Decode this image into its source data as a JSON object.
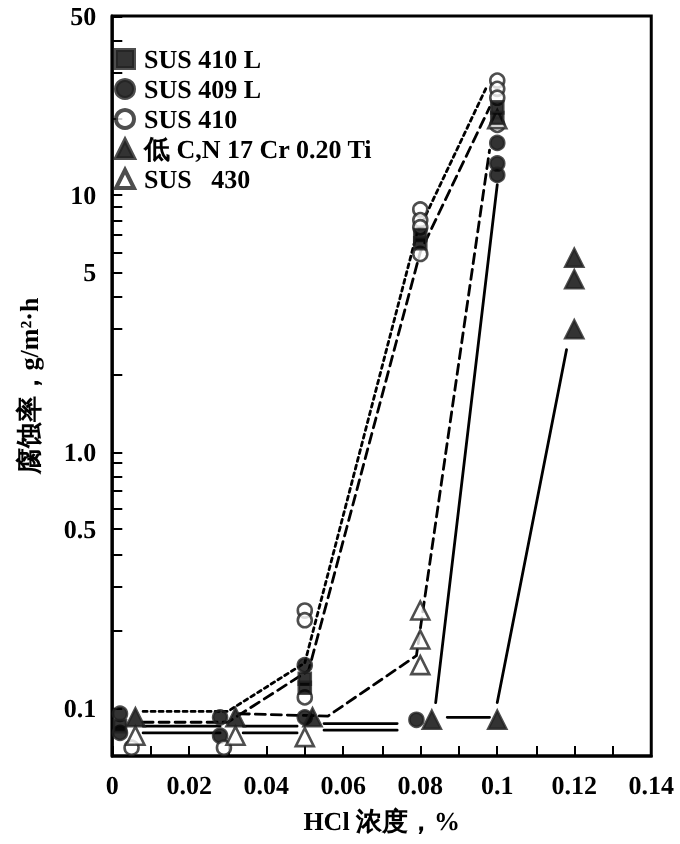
{
  "chart_data": {
    "type": "scatter",
    "xlabel": "HCl 浓度，%",
    "ylabel": "腐蚀率，g/m²·h",
    "log": "y",
    "legend": "top left",
    "grid": false,
    "xlim": [
      0,
      0.14
    ],
    "xticks": [
      0,
      {
        "value": 0.01,
        "label": null
      },
      0.02,
      {
        "value": 0.03,
        "label": null
      },
      0.04,
      {
        "value": 0.05,
        "label": null
      },
      0.06,
      {
        "value": 0.07,
        "label": null
      },
      0.08,
      {
        "value": 0.09,
        "label": null
      },
      0.1,
      {
        "value": 0.11,
        "label": null
      },
      0.12,
      {
        "value": 0.13,
        "label": null
      },
      0.14
    ],
    "ylim": [
      0.065,
      50
    ],
    "yticks": [
      0.1,
      {
        "value": 0.2,
        "label": null
      },
      {
        "value": 0.3,
        "label": null
      },
      {
        "value": 0.4,
        "label": null
      },
      {
        "value": 0.5,
        "label": "0.5"
      },
      {
        "value": 0.6,
        "label": null
      },
      {
        "value": 0.7,
        "label": null
      },
      {
        "value": 0.8,
        "label": null
      },
      {
        "value": 0.9,
        "label": null
      },
      {
        "value": 1,
        "label": "1.0"
      },
      {
        "value": 2,
        "label": null
      },
      {
        "value": 3,
        "label": null
      },
      {
        "value": 4,
        "label": null
      },
      5,
      {
        "value": 6,
        "label": null
      },
      {
        "value": 7,
        "label": null
      },
      {
        "value": 8,
        "label": null
      },
      {
        "value": 9,
        "label": null
      },
      10,
      {
        "value": 20,
        "label": null
      },
      {
        "value": 30,
        "label": null
      },
      {
        "value": 40,
        "label": null
      },
      50
    ],
    "series": [
      {
        "name": "SUS 410 L",
        "marker": "square",
        "color": "#000000",
        "x": [
          0.002,
          0.05,
          0.05,
          0.08,
          0.08,
          0.1,
          0.1
        ],
        "values": [
          0.085,
          0.13,
          0.12,
          7,
          6.5,
          22,
          20
        ]
      },
      {
        "name": "SUS 409 L",
        "marker": "circle",
        "color": "#000000",
        "x": [
          0.002,
          0.002,
          0.028,
          0.028,
          0.05,
          0.05,
          0.079,
          0.1,
          0.1,
          0.1
        ],
        "values": [
          0.095,
          0.08,
          0.092,
          0.078,
          0.147,
          0.092,
          0.09,
          16,
          13.3,
          12
        ]
      },
      {
        "name": "SUS 410",
        "marker": "circle",
        "color": "#ffffff",
        "x": [
          0.005,
          0.029,
          0.05,
          0.05,
          0.05,
          0.08,
          0.08,
          0.08,
          0.08,
          0.1,
          0.1,
          0.1,
          0.1
        ],
        "values": [
          0.07,
          0.07,
          0.24,
          0.22,
          0.11,
          8.8,
          8,
          7.5,
          5.9,
          28,
          26,
          24,
          18.8
        ]
      },
      {
        "name": "低 C,N 17 Cr 0.20 Ti",
        "marker": "triangle",
        "color": "#000000",
        "x": [
          0.006,
          0.032,
          0.052,
          0.083,
          0.1,
          0.12,
          0.12,
          0.12
        ],
        "values": [
          0.092,
          0.092,
          0.092,
          0.09,
          0.09,
          5.7,
          4.7,
          3.0
        ]
      },
      {
        "name": "SUS   430",
        "marker": "triangle",
        "color": "#ffffff",
        "x": [
          0.006,
          0.032,
          0.05,
          0.08,
          0.08,
          0.08,
          0.1
        ],
        "values": [
          0.078,
          0.078,
          0.077,
          0.24,
          0.185,
          0.147,
          19.8
        ]
      },
      {
        "type": "line",
        "marker": "none",
        "line_style": "dotted",
        "color": "#000000",
        "x": [
          0.008,
          0.03,
          0.05,
          0.079,
          0.097
        ],
        "values": [
          0.097,
          0.097,
          0.15,
          7,
          26
        ]
      },
      {
        "type": "line",
        "marker": "none",
        "line_style": "dashed",
        "color": "#000000",
        "x": [
          0.008,
          0.03,
          0.051,
          0.08,
          0.098
        ],
        "values": [
          0.088,
          0.088,
          0.14,
          6,
          22
        ]
      },
      {
        "type": "line",
        "marker": "none",
        "line_style": "dashed",
        "color": "#000000",
        "x": [
          0.033,
          0.056,
          0.079,
          0.098
        ],
        "values": [
          0.095,
          0.093,
          0.16,
          15
        ]
      },
      {
        "type": "line",
        "marker": "none",
        "line_style": "solid",
        "color": "#000000",
        "x": [
          0.008,
          0.028,
          0.03,
          0.034,
          0.048,
          0.05,
          0.055,
          0.074,
          0.08,
          0.084,
          0.1
        ],
        "values": [
          0.085,
          0.085,
          null,
          0.085,
          0.085,
          null,
          0.087,
          0.087,
          null,
          0.105,
          11
        ]
      },
      {
        "type": "line",
        "marker": "none",
        "line_style": "solid",
        "color": "#000000",
        "x": [
          0.008,
          0.028,
          0.03,
          0.034,
          0.048,
          0.05,
          0.055,
          0.074,
          0.08,
          0.087,
          0.098,
          0.099,
          0.1,
          0.118
        ],
        "values": [
          0.08,
          0.08,
          null,
          0.08,
          0.08,
          null,
          0.082,
          0.082,
          null,
          0.092,
          0.092,
          null,
          0.105,
          2.5
        ]
      }
    ]
  }
}
